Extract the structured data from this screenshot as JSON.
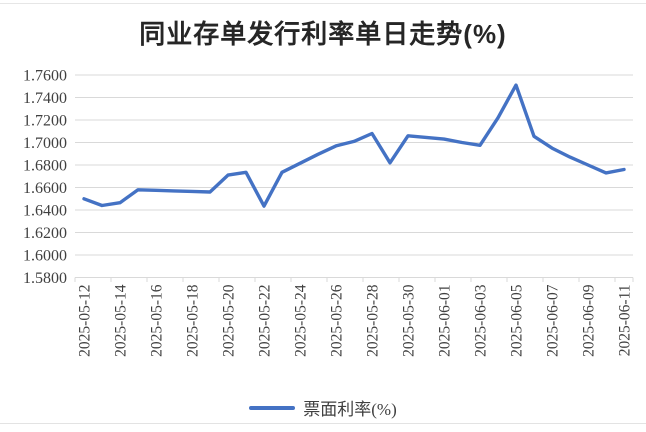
{
  "chart": {
    "title": "同业存单发行利率单日走势(%)",
    "legend": {
      "label": "票面利率(%)"
    }
  },
  "chart_data": {
    "type": "line",
    "title": "同业存单发行利率单日走势(%)",
    "categories": [
      "2025-05-12",
      "2025-05-13",
      "2025-05-14",
      "2025-05-15",
      "2025-05-16",
      "2025-05-17",
      "2025-05-18",
      "2025-05-19",
      "2025-05-20",
      "2025-05-21",
      "2025-05-22",
      "2025-05-23",
      "2025-05-24",
      "2025-05-25",
      "2025-05-26",
      "2025-05-27",
      "2025-05-28",
      "2025-05-29",
      "2025-05-30",
      "2025-05-31",
      "2025-06-01",
      "2025-06-02",
      "2025-06-03",
      "2025-06-04",
      "2025-06-05",
      "2025-06-06",
      "2025-06-07",
      "2025-06-08",
      "2025-06-09",
      "2025-06-10",
      "2025-06-11"
    ],
    "series": [
      {
        "name": "票面利率(%)",
        "values": [
          1.65,
          1.644,
          1.6465,
          1.658,
          1.6575,
          1.657,
          1.6565,
          1.656,
          1.671,
          1.6735,
          1.6435,
          1.6735,
          1.6815,
          1.6895,
          1.697,
          1.701,
          1.708,
          1.682,
          1.706,
          1.7045,
          1.703,
          1.7,
          1.6975,
          1.722,
          1.751,
          1.7055,
          1.695,
          1.687,
          1.68,
          1.673,
          1.676
        ]
      }
    ],
    "xlabel": "",
    "ylabel": "",
    "ylim": [
      1.58,
      1.76
    ],
    "ytick_step": 0.02,
    "ytick_decimals": 4,
    "x_label_every": 2,
    "x_labels_rotated_degrees": 90,
    "grid": true,
    "legend_position": "bottom",
    "colors": {
      "line": "#4472C4",
      "grid": "#D9D9D9",
      "axis_text": "#404040",
      "title_text": "#262626"
    }
  }
}
